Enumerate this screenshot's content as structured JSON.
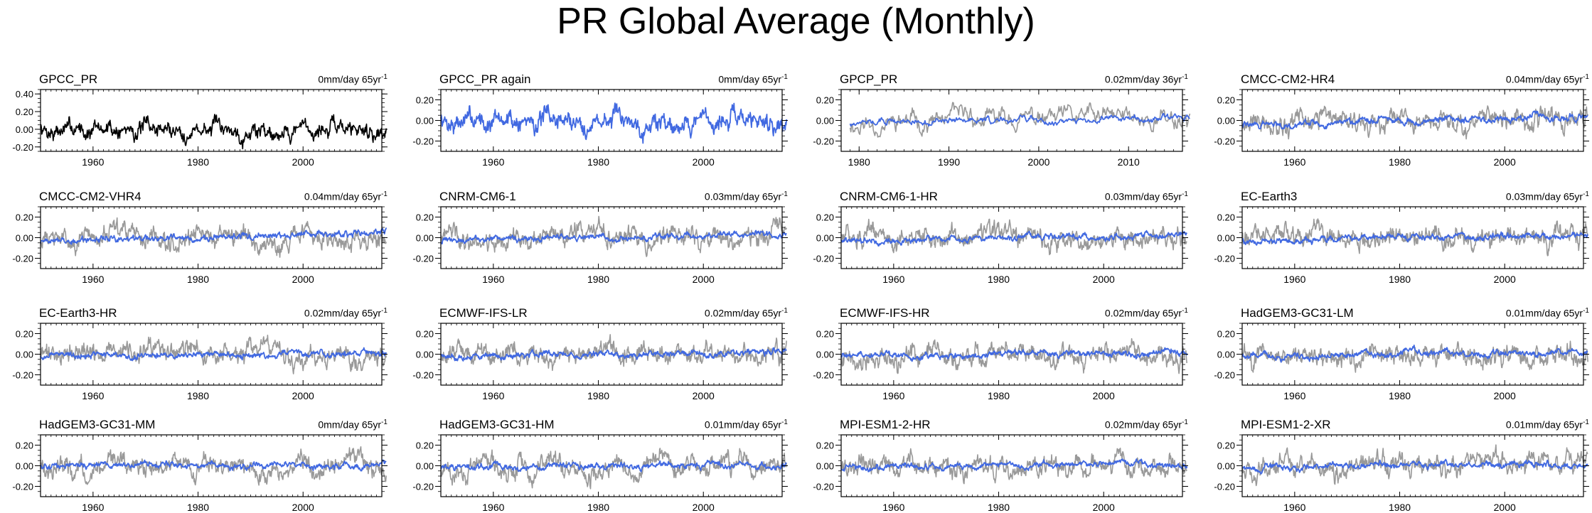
{
  "title": "PR Global Average (Monthly)",
  "colors": {
    "observation": "#000000",
    "reference": "#999999",
    "model": "#4169e1"
  },
  "chart_data": [
    {
      "type": "line",
      "title": "GPCC_PR",
      "trend_value": "0mm/day",
      "trend_period": "65yr",
      "trend_exp": "-1",
      "xlim": [
        1950,
        2015
      ],
      "ylim": [
        -0.25,
        0.45
      ],
      "xticks": [
        1960,
        1980,
        2000
      ],
      "yticks": [
        -0.2,
        0.0,
        0.2,
        0.4
      ],
      "ytick_labels": [
        "-0.20",
        "0.00",
        "0.20",
        "0.40"
      ],
      "ylabel": "",
      "xlabel": "",
      "grid": false,
      "series": [
        {
          "role": "observation",
          "seed": 7,
          "amp": 0.085,
          "trend": 0,
          "lims": [
            -0.24,
            0.33
          ]
        }
      ]
    },
    {
      "type": "line",
      "title": "GPCC_PR again",
      "trend_value": "0mm/day",
      "trend_period": "65yr",
      "trend_exp": "-1",
      "xlim": [
        1950,
        2015
      ],
      "ylim": [
        -0.3,
        0.3
      ],
      "xticks": [
        1960,
        1980,
        2000
      ],
      "yticks": [
        -0.2,
        0.0,
        0.2
      ],
      "ytick_labels": [
        "-0.20",
        "0.00",
        "0.20"
      ],
      "ylabel": "",
      "xlabel": "",
      "grid": false,
      "series": [
        {
          "role": "model",
          "seed": 7,
          "amp": 0.085,
          "trend": 0,
          "lims": [
            -0.24,
            0.33
          ]
        }
      ]
    },
    {
      "type": "line",
      "title": "GPCP_PR",
      "trend_value": "0.02mm/day",
      "trend_period": "36yr",
      "trend_exp": "-1",
      "xlim": [
        1978,
        2016
      ],
      "ylim": [
        -0.3,
        0.3
      ],
      "xticks": [
        1980,
        1990,
        2000,
        2010
      ],
      "yticks": [
        -0.2,
        0.0,
        0.2
      ],
      "ytick_labels": [
        "-0.20",
        "0.00",
        "0.20"
      ],
      "ylabel": "",
      "xlabel": "",
      "grid": false,
      "series": [
        {
          "role": "reference",
          "seed": 11,
          "amp": 0.085,
          "trend": 0.03,
          "lims": [
            -0.24,
            0.3
          ],
          "start": 1979
        },
        {
          "role": "model",
          "seed": 12,
          "amp": 0.03,
          "trend": 0.02,
          "lims": [
            -0.1,
            0.1
          ],
          "start": 1979
        }
      ]
    },
    {
      "type": "line",
      "title": "CMCC-CM2-HR4",
      "trend_value": "0.04mm/day",
      "trend_period": "65yr",
      "trend_exp": "-1",
      "xlim": [
        1950,
        2015
      ],
      "ylim": [
        -0.3,
        0.3
      ],
      "xticks": [
        1960,
        1980,
        2000
      ],
      "yticks": [
        -0.2,
        0.0,
        0.2
      ],
      "ytick_labels": [
        "-0.20",
        "0.00",
        "0.20"
      ],
      "ylabel": "",
      "xlabel": "",
      "grid": false,
      "series": [
        {
          "role": "reference",
          "seed": 21,
          "amp": 0.085,
          "trend": 0,
          "lims": [
            -0.25,
            0.3
          ]
        },
        {
          "role": "model",
          "seed": 22,
          "amp": 0.028,
          "trend": 0.04,
          "lims": [
            -0.08,
            0.1
          ]
        }
      ]
    },
    {
      "type": "line",
      "title": "CMCC-CM2-VHR4",
      "trend_value": "0.04mm/day",
      "trend_period": "65yr",
      "trend_exp": "-1",
      "xlim": [
        1950,
        2015
      ],
      "ylim": [
        -0.3,
        0.3
      ],
      "xticks": [
        1960,
        1980,
        2000
      ],
      "yticks": [
        -0.2,
        0.0,
        0.2
      ],
      "ytick_labels": [
        "-0.20",
        "0.00",
        "0.20"
      ],
      "ylabel": "",
      "xlabel": "",
      "grid": false,
      "series": [
        {
          "role": "reference",
          "seed": 31,
          "amp": 0.085,
          "trend": 0,
          "lims": [
            -0.25,
            0.3
          ]
        },
        {
          "role": "model",
          "seed": 32,
          "amp": 0.028,
          "trend": 0.04,
          "lims": [
            -0.08,
            0.1
          ]
        }
      ]
    },
    {
      "type": "line",
      "title": "CNRM-CM6-1",
      "trend_value": "0.03mm/day",
      "trend_period": "65yr",
      "trend_exp": "-1",
      "xlim": [
        1950,
        2015
      ],
      "ylim": [
        -0.3,
        0.3
      ],
      "xticks": [
        1960,
        1980,
        2000
      ],
      "yticks": [
        -0.2,
        0.0,
        0.2
      ],
      "ytick_labels": [
        "-0.20",
        "0.00",
        "0.20"
      ],
      "ylabel": "",
      "xlabel": "",
      "grid": false,
      "series": [
        {
          "role": "reference",
          "seed": 41,
          "amp": 0.085,
          "trend": 0,
          "lims": [
            -0.25,
            0.3
          ]
        },
        {
          "role": "model",
          "seed": 42,
          "amp": 0.026,
          "trend": 0.03,
          "lims": [
            -0.08,
            0.1
          ]
        }
      ]
    },
    {
      "type": "line",
      "title": "CNRM-CM6-1-HR",
      "trend_value": "0.03mm/day",
      "trend_period": "65yr",
      "trend_exp": "-1",
      "xlim": [
        1950,
        2015
      ],
      "ylim": [
        -0.3,
        0.3
      ],
      "xticks": [
        1960,
        1980,
        2000
      ],
      "yticks": [
        -0.2,
        0.0,
        0.2
      ],
      "ytick_labels": [
        "-0.20",
        "0.00",
        "0.20"
      ],
      "ylabel": "",
      "xlabel": "",
      "grid": false,
      "series": [
        {
          "role": "reference",
          "seed": 51,
          "amp": 0.085,
          "trend": 0,
          "lims": [
            -0.25,
            0.3
          ]
        },
        {
          "role": "model",
          "seed": 52,
          "amp": 0.026,
          "trend": 0.03,
          "lims": [
            -0.08,
            0.1
          ]
        }
      ]
    },
    {
      "type": "line",
      "title": "EC-Earth3",
      "trend_value": "0.03mm/day",
      "trend_period": "65yr",
      "trend_exp": "-1",
      "xlim": [
        1950,
        2015
      ],
      "ylim": [
        -0.3,
        0.3
      ],
      "xticks": [
        1960,
        1980,
        2000
      ],
      "yticks": [
        -0.2,
        0.0,
        0.2
      ],
      "ytick_labels": [
        "-0.20",
        "0.00",
        "0.20"
      ],
      "ylabel": "",
      "xlabel": "",
      "grid": false,
      "series": [
        {
          "role": "reference",
          "seed": 61,
          "amp": 0.085,
          "trend": 0,
          "lims": [
            -0.25,
            0.3
          ]
        },
        {
          "role": "model",
          "seed": 62,
          "amp": 0.026,
          "trend": 0.03,
          "lims": [
            -0.08,
            0.1
          ]
        }
      ]
    },
    {
      "type": "line",
      "title": "EC-Earth3-HR",
      "trend_value": "0.02mm/day",
      "trend_period": "65yr",
      "trend_exp": "-1",
      "xlim": [
        1950,
        2015
      ],
      "ylim": [
        -0.3,
        0.3
      ],
      "xticks": [
        1960,
        1980,
        2000
      ],
      "yticks": [
        -0.2,
        0.0,
        0.2
      ],
      "ytick_labels": [
        "-0.20",
        "0.00",
        "0.20"
      ],
      "ylabel": "",
      "xlabel": "",
      "grid": false,
      "series": [
        {
          "role": "reference",
          "seed": 71,
          "amp": 0.085,
          "trend": 0,
          "lims": [
            -0.25,
            0.3
          ]
        },
        {
          "role": "model",
          "seed": 72,
          "amp": 0.026,
          "trend": 0.02,
          "lims": [
            -0.08,
            0.1
          ]
        }
      ]
    },
    {
      "type": "line",
      "title": "ECMWF-IFS-LR",
      "trend_value": "0.02mm/day",
      "trend_period": "65yr",
      "trend_exp": "-1",
      "xlim": [
        1950,
        2015
      ],
      "ylim": [
        -0.3,
        0.3
      ],
      "xticks": [
        1960,
        1980,
        2000
      ],
      "yticks": [
        -0.2,
        0.0,
        0.2
      ],
      "ytick_labels": [
        "-0.20",
        "0.00",
        "0.20"
      ],
      "ylabel": "",
      "xlabel": "",
      "grid": false,
      "series": [
        {
          "role": "reference",
          "seed": 81,
          "amp": 0.085,
          "trend": 0,
          "lims": [
            -0.25,
            0.3
          ]
        },
        {
          "role": "model",
          "seed": 82,
          "amp": 0.026,
          "trend": 0.02,
          "lims": [
            -0.08,
            0.1
          ]
        }
      ]
    },
    {
      "type": "line",
      "title": "ECMWF-IFS-HR",
      "trend_value": "0.02mm/day",
      "trend_period": "65yr",
      "trend_exp": "-1",
      "xlim": [
        1950,
        2015
      ],
      "ylim": [
        -0.3,
        0.3
      ],
      "xticks": [
        1960,
        1980,
        2000
      ],
      "yticks": [
        -0.2,
        0.0,
        0.2
      ],
      "ytick_labels": [
        "-0.20",
        "0.00",
        "0.20"
      ],
      "ylabel": "",
      "xlabel": "",
      "grid": false,
      "series": [
        {
          "role": "reference",
          "seed": 91,
          "amp": 0.085,
          "trend": 0,
          "lims": [
            -0.25,
            0.3
          ]
        },
        {
          "role": "model",
          "seed": 92,
          "amp": 0.026,
          "trend": 0.02,
          "lims": [
            -0.08,
            0.1
          ]
        }
      ]
    },
    {
      "type": "line",
      "title": "HadGEM3-GC31-LM",
      "trend_value": "0.01mm/day",
      "trend_period": "65yr",
      "trend_exp": "-1",
      "xlim": [
        1950,
        2015
      ],
      "ylim": [
        -0.3,
        0.3
      ],
      "xticks": [
        1960,
        1980,
        2000
      ],
      "yticks": [
        -0.2,
        0.0,
        0.2
      ],
      "ytick_labels": [
        "-0.20",
        "0.00",
        "0.20"
      ],
      "ylabel": "",
      "xlabel": "",
      "grid": false,
      "series": [
        {
          "role": "reference",
          "seed": 101,
          "amp": 0.085,
          "trend": 0,
          "lims": [
            -0.25,
            0.3
          ]
        },
        {
          "role": "model",
          "seed": 102,
          "amp": 0.026,
          "trend": 0.01,
          "lims": [
            -0.08,
            0.1
          ]
        }
      ]
    },
    {
      "type": "line",
      "title": "HadGEM3-GC31-MM",
      "trend_value": "0mm/day",
      "trend_period": "65yr",
      "trend_exp": "-1",
      "xlim": [
        1950,
        2015
      ],
      "ylim": [
        -0.3,
        0.3
      ],
      "xticks": [
        1960,
        1980,
        2000
      ],
      "yticks": [
        -0.2,
        0.0,
        0.2
      ],
      "ytick_labels": [
        "-0.20",
        "0.00",
        "0.20"
      ],
      "ylabel": "",
      "xlabel": "",
      "grid": false,
      "series": [
        {
          "role": "reference",
          "seed": 111,
          "amp": 0.085,
          "trend": 0,
          "lims": [
            -0.25,
            0.3
          ]
        },
        {
          "role": "model",
          "seed": 112,
          "amp": 0.026,
          "trend": 0,
          "lims": [
            -0.08,
            0.1
          ]
        }
      ]
    },
    {
      "type": "line",
      "title": "HadGEM3-GC31-HM",
      "trend_value": "0.01mm/day",
      "trend_period": "65yr",
      "trend_exp": "-1",
      "xlim": [
        1950,
        2015
      ],
      "ylim": [
        -0.3,
        0.3
      ],
      "xticks": [
        1960,
        1980,
        2000
      ],
      "yticks": [
        -0.2,
        0.0,
        0.2
      ],
      "ytick_labels": [
        "-0.20",
        "0.00",
        "0.20"
      ],
      "ylabel": "",
      "xlabel": "",
      "grid": false,
      "series": [
        {
          "role": "reference",
          "seed": 121,
          "amp": 0.085,
          "trend": 0,
          "lims": [
            -0.25,
            0.3
          ]
        },
        {
          "role": "model",
          "seed": 122,
          "amp": 0.026,
          "trend": 0.01,
          "lims": [
            -0.08,
            0.1
          ]
        }
      ]
    },
    {
      "type": "line",
      "title": "MPI-ESM1-2-HR",
      "trend_value": "0.02mm/day",
      "trend_period": "65yr",
      "trend_exp": "-1",
      "xlim": [
        1950,
        2015
      ],
      "ylim": [
        -0.3,
        0.3
      ],
      "xticks": [
        1960,
        1980,
        2000
      ],
      "yticks": [
        -0.2,
        0.0,
        0.2
      ],
      "ytick_labels": [
        "-0.20",
        "0.00",
        "0.20"
      ],
      "ylabel": "",
      "xlabel": "",
      "grid": false,
      "series": [
        {
          "role": "reference",
          "seed": 131,
          "amp": 0.085,
          "trend": 0,
          "lims": [
            -0.25,
            0.3
          ]
        },
        {
          "role": "model",
          "seed": 132,
          "amp": 0.026,
          "trend": 0.02,
          "lims": [
            -0.08,
            0.1
          ]
        }
      ]
    },
    {
      "type": "line",
      "title": "MPI-ESM1-2-XR",
      "trend_value": "0.01mm/day",
      "trend_period": "65yr",
      "trend_exp": "-1",
      "xlim": [
        1950,
        2015
      ],
      "ylim": [
        -0.3,
        0.3
      ],
      "xticks": [
        1960,
        1980,
        2000
      ],
      "yticks": [
        -0.2,
        0.0,
        0.2
      ],
      "ytick_labels": [
        "-0.20",
        "0.00",
        "0.20"
      ],
      "ylabel": "",
      "xlabel": "",
      "grid": false,
      "series": [
        {
          "role": "reference",
          "seed": 141,
          "amp": 0.085,
          "trend": 0,
          "lims": [
            -0.25,
            0.3
          ]
        },
        {
          "role": "model",
          "seed": 142,
          "amp": 0.026,
          "trend": 0.01,
          "lims": [
            -0.08,
            0.1
          ]
        }
      ]
    }
  ]
}
